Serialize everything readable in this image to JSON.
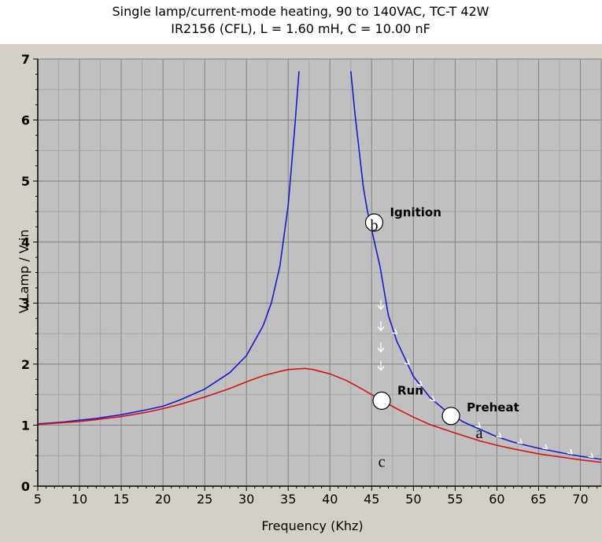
{
  "chart_data": {
    "type": "line",
    "title": "Single lamp/current-mode heating,  90 to 140VAC,  TC-T 42W",
    "subtitle": "IR2156 (CFL),  L = 1.60 mH,  C = 10.00 nF",
    "xlabel": "Frequency (Khz)",
    "ylabel": "V Lamp / V in",
    "xlim": [
      5,
      72.5
    ],
    "ylim": [
      0,
      7
    ],
    "grid": true,
    "x_ticks": [
      "5",
      "10",
      "15",
      "20",
      "25",
      "30",
      "35",
      "40",
      "45",
      "50",
      "55",
      "60",
      "65",
      "70"
    ],
    "y_ticks": [
      "0",
      "1",
      "2",
      "3",
      "4",
      "5",
      "6",
      "7"
    ],
    "series": [
      {
        "color": "#1a1acc",
        "segments": [
          [
            [
              5,
              1.02
            ],
            [
              8,
              1.05
            ],
            [
              10,
              1.08
            ],
            [
              12,
              1.11
            ],
            [
              15,
              1.17
            ],
            [
              18,
              1.25
            ],
            [
              20,
              1.31
            ],
            [
              22,
              1.41
            ],
            [
              25,
              1.59
            ],
            [
              28,
              1.86
            ],
            [
              30,
              2.14
            ],
            [
              32,
              2.63
            ],
            [
              33,
              3.01
            ],
            [
              34,
              3.6
            ],
            [
              35,
              4.6
            ],
            [
              35.8,
              5.9
            ],
            [
              36.3,
              6.8
            ]
          ],
          [
            [
              42.5,
              6.8
            ],
            [
              43,
              6.1
            ],
            [
              43.5,
              5.5
            ],
            [
              44,
              4.9
            ],
            [
              44.5,
              4.5
            ],
            [
              45,
              4.2
            ],
            [
              46,
              3.6
            ],
            [
              47,
              2.8
            ],
            [
              48,
              2.38
            ],
            [
              50,
              1.8
            ],
            [
              52,
              1.45
            ],
            [
              54,
              1.22
            ],
            [
              56,
              1.05
            ],
            [
              58,
              0.93
            ],
            [
              60,
              0.81
            ],
            [
              62,
              0.72
            ],
            [
              65,
              0.62
            ],
            [
              68,
              0.54
            ],
            [
              70,
              0.49
            ],
            [
              72.5,
              0.44
            ]
          ]
        ]
      },
      {
        "color": "#d41414",
        "segments": [
          [
            [
              5,
              1.01
            ],
            [
              8,
              1.04
            ],
            [
              10,
              1.06
            ],
            [
              12,
              1.09
            ],
            [
              15,
              1.14
            ],
            [
              18,
              1.21
            ],
            [
              20,
              1.27
            ],
            [
              22,
              1.34
            ],
            [
              25,
              1.46
            ],
            [
              28,
              1.6
            ],
            [
              30,
              1.71
            ],
            [
              32,
              1.81
            ],
            [
              34,
              1.88
            ],
            [
              35,
              1.91
            ],
            [
              36,
              1.92
            ],
            [
              37,
              1.93
            ],
            [
              38,
              1.91
            ],
            [
              40,
              1.84
            ],
            [
              42,
              1.73
            ],
            [
              44,
              1.58
            ],
            [
              46,
              1.42
            ],
            [
              48,
              1.27
            ],
            [
              50,
              1.13
            ],
            [
              52,
              1.01
            ],
            [
              55,
              0.87
            ],
            [
              58,
              0.74
            ],
            [
              60,
              0.67
            ],
            [
              62,
              0.61
            ],
            [
              65,
              0.53
            ],
            [
              68,
              0.47
            ],
            [
              70,
              0.43
            ],
            [
              72.5,
              0.39
            ]
          ]
        ]
      }
    ],
    "markers": [
      {
        "x": 45.3,
        "y": 4.32,
        "label": "Ignition",
        "letter": "b"
      },
      {
        "x": 46.2,
        "y": 1.4,
        "label": "Run",
        "letter": "c"
      },
      {
        "x": 54.5,
        "y": 1.15,
        "label": "Preheat",
        "letter": "a"
      }
    ]
  }
}
